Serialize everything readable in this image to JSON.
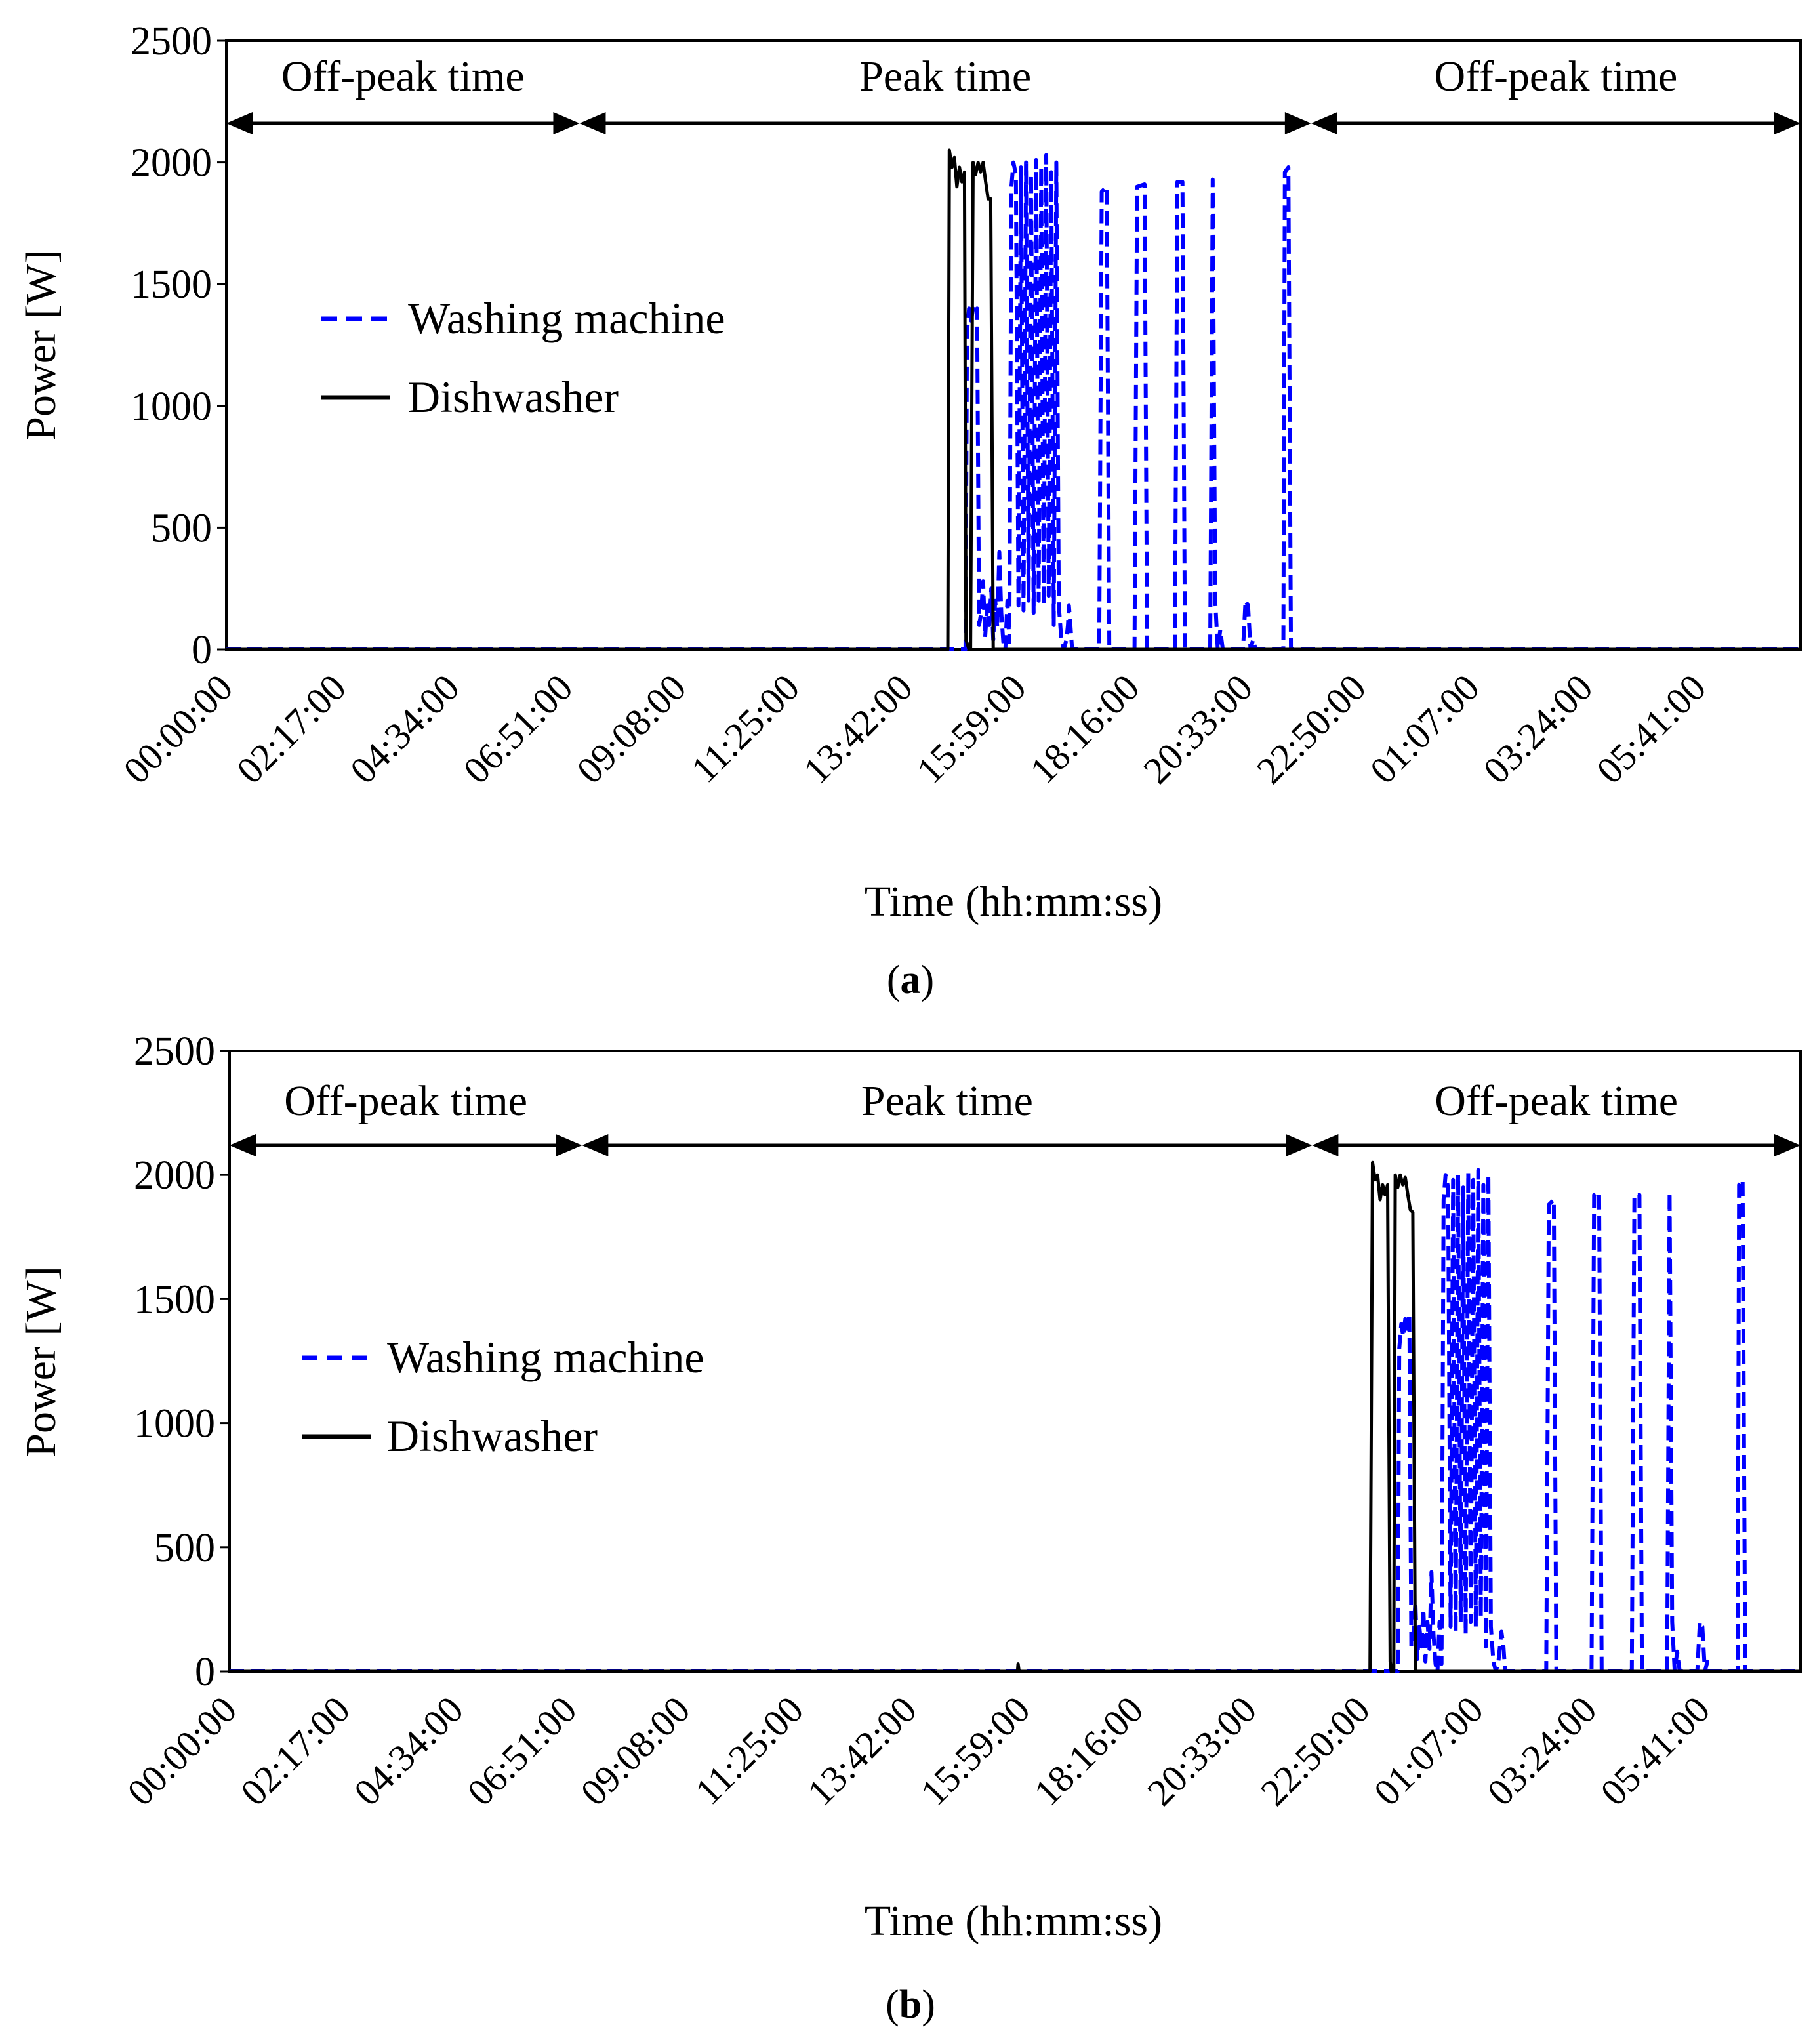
{
  "chart_data": [
    {
      "type": "line",
      "caption": "(a)",
      "caption_letter": "a",
      "xlabel": "Time (hh:mm:ss)",
      "ylabel": "Power [W]",
      "ylim": [
        0,
        2500
      ],
      "yticks": [
        0,
        500,
        1000,
        1500,
        2000,
        2500
      ],
      "xlim_hours": [
        0,
        31.2
      ],
      "x_tick_labels": [
        "00:00:00",
        "02:17:00",
        "04:34:00",
        "06:51:00",
        "09:08:00",
        "11:25:00",
        "13:42:00",
        "15:59:00",
        "18:16:00",
        "20:33:00",
        "22:50:00",
        "01:07:00",
        "03:24:00",
        "05:41:00"
      ],
      "grid": false,
      "legend_position": "upper-left",
      "periods": [
        {
          "label": "Off-peak time",
          "start_h": 0,
          "end_h": 7
        },
        {
          "label": "Peak time",
          "start_h": 7,
          "end_h": 21.5
        },
        {
          "label": "Off-peak time",
          "start_h": 21.5,
          "end_h": 31.2
        }
      ],
      "series": [
        {
          "name": "Washing machine",
          "style": "dashed",
          "color": "#0000ff",
          "x_hours": [
            0,
            14.65,
            14.68,
            14.72,
            14.76,
            14.8,
            14.84,
            14.88,
            14.92,
            14.96,
            15.0,
            15.04,
            15.08,
            15.12,
            15.16,
            15.2,
            15.24,
            15.28,
            15.32,
            15.36,
            15.4,
            15.44,
            15.48,
            15.52,
            15.56,
            15.6,
            15.65,
            15.7,
            15.75,
            15.8,
            15.85,
            15.9,
            15.95,
            16.0,
            16.05,
            16.1,
            16.15,
            16.2,
            16.25,
            16.3,
            16.35,
            16.4,
            16.45,
            16.5,
            16.55,
            16.6,
            16.65,
            16.68,
            16.7,
            16.73,
            16.76,
            16.8,
            17.3,
            17.35,
            17.45,
            17.5,
            18.0,
            18.05,
            18.2,
            18.25,
            18.8,
            18.85,
            18.95,
            19.0,
            19.5,
            19.55,
            19.6,
            19.65,
            19.7,
            19.75,
            20.15,
            20.2,
            20.25,
            20.3,
            20.35,
            20.4,
            20.95,
            20.98,
            21.05,
            21.1,
            21.5,
            31.2
          ],
          "y": [
            0,
            0,
            1300,
            1400,
            1350,
            1400,
            1380,
            1400,
            100,
            150,
            280,
            50,
            180,
            100,
            250,
            40,
            200,
            90,
            400,
            150,
            30,
            0,
            200,
            30,
            1900,
            2000,
            1950,
            180,
            1980,
            160,
            2000,
            200,
            1950,
            150,
            2010,
            200,
            1980,
            180,
            2030,
            220,
            1960,
            100,
            2000,
            180,
            40,
            0,
            40,
            100,
            180,
            100,
            10,
            0,
            0,
            1880,
            1900,
            0,
            0,
            1900,
            1910,
            0,
            0,
            1920,
            1920,
            0,
            0,
            1930,
            200,
            0,
            80,
            0,
            0,
            200,
            180,
            0,
            40,
            0,
            0,
            1960,
            1980,
            0,
            0,
            0
          ]
        },
        {
          "name": "Dishwasher",
          "style": "solid",
          "color": "#000000",
          "x_hours": [
            0,
            14.3,
            14.33,
            14.38,
            14.43,
            14.48,
            14.53,
            14.58,
            14.63,
            14.66,
            14.72,
            14.75,
            14.8,
            14.85,
            14.9,
            14.95,
            15.0,
            15.05,
            15.1,
            15.15,
            15.2,
            15.25,
            15.3,
            15.35,
            31.2
          ],
          "y": [
            0,
            0,
            2050,
            1980,
            2020,
            1900,
            1980,
            1920,
            1960,
            40,
            0,
            0,
            2000,
            1950,
            2000,
            1960,
            2000,
            1920,
            1850,
            1850,
            0,
            0,
            0,
            0,
            0
          ]
        }
      ]
    },
    {
      "type": "line",
      "caption": "(b)",
      "caption_letter": "b",
      "xlabel": "Time (hh:mm:ss)",
      "ylabel": "Power [W]",
      "ylim": [
        0,
        2500
      ],
      "yticks": [
        0,
        500,
        1000,
        1500,
        2000,
        2500
      ],
      "xlim_hours": [
        0,
        31.2
      ],
      "x_tick_labels": [
        "00:00:00",
        "02:17:00",
        "04:34:00",
        "06:51:00",
        "09:08:00",
        "11:25:00",
        "13:42:00",
        "15:59:00",
        "18:16:00",
        "20:33:00",
        "22:50:00",
        "01:07:00",
        "03:24:00",
        "05:41:00"
      ],
      "grid": false,
      "legend_position": "upper-left",
      "periods": [
        {
          "label": "Off-peak time",
          "start_h": 0,
          "end_h": 7
        },
        {
          "label": "Peak time",
          "start_h": 7,
          "end_h": 21.5
        },
        {
          "label": "Off-peak time",
          "start_h": 21.5,
          "end_h": 31.2
        }
      ],
      "series": [
        {
          "name": "Washing machine",
          "style": "dashed",
          "color": "#0000ff",
          "x_hours": [
            0,
            23.2,
            23.23,
            23.27,
            23.31,
            23.35,
            23.39,
            23.43,
            23.47,
            23.51,
            23.55,
            23.59,
            23.63,
            23.67,
            23.71,
            23.75,
            23.79,
            23.83,
            23.87,
            23.91,
            23.95,
            23.99,
            24.03,
            24.07,
            24.11,
            24.15,
            24.2,
            24.25,
            24.3,
            24.35,
            24.4,
            24.45,
            24.5,
            24.55,
            24.6,
            24.65,
            24.7,
            24.75,
            24.8,
            24.85,
            24.9,
            24.95,
            25.0,
            25.05,
            25.1,
            25.15,
            25.2,
            25.23,
            25.26,
            25.3,
            25.33,
            25.36,
            26.15,
            26.2,
            26.3,
            26.35,
            27.05,
            27.1,
            27.2,
            27.25,
            27.85,
            27.9,
            28.0,
            28.05,
            28.55,
            28.6,
            28.65,
            28.7,
            28.75,
            28.8,
            29.15,
            29.2,
            29.25,
            29.3,
            29.35,
            29.4,
            29.95,
            29.98,
            30.05,
            30.1,
            31.2
          ],
          "y": [
            0,
            0,
            1300,
            1400,
            1350,
            1420,
            1380,
            1440,
            100,
            150,
            280,
            50,
            180,
            100,
            250,
            40,
            200,
            90,
            400,
            150,
            30,
            0,
            200,
            30,
            1900,
            2000,
            1950,
            180,
            1980,
            160,
            2000,
            200,
            1950,
            150,
            2010,
            200,
            1980,
            180,
            2020,
            220,
            1960,
            100,
            2000,
            180,
            40,
            0,
            40,
            100,
            160,
            100,
            10,
            0,
            0,
            1880,
            1900,
            0,
            0,
            1920,
            1930,
            0,
            0,
            1920,
            1920,
            0,
            0,
            1930,
            200,
            0,
            80,
            0,
            0,
            200,
            180,
            0,
            40,
            0,
            0,
            1960,
            1980,
            0,
            0
          ]
        },
        {
          "name": "Dishwasher",
          "style": "solid",
          "color": "#000000",
          "x_hours": [
            0,
            15.65,
            15.66,
            15.68,
            15.7,
            22.65,
            22.7,
            22.75,
            22.8,
            22.85,
            22.9,
            22.95,
            23.0,
            23.05,
            23.07,
            23.12,
            23.15,
            23.2,
            23.25,
            23.3,
            23.35,
            23.4,
            23.45,
            23.5,
            23.55,
            23.6,
            23.65,
            23.7,
            31.2
          ],
          "y": [
            0,
            0,
            30,
            0,
            0,
            0,
            2050,
            1980,
            2000,
            1900,
            1960,
            1920,
            1960,
            40,
            0,
            0,
            2000,
            1950,
            2000,
            1960,
            1990,
            1920,
            1860,
            1850,
            0,
            0,
            0,
            0,
            0
          ]
        }
      ]
    }
  ]
}
